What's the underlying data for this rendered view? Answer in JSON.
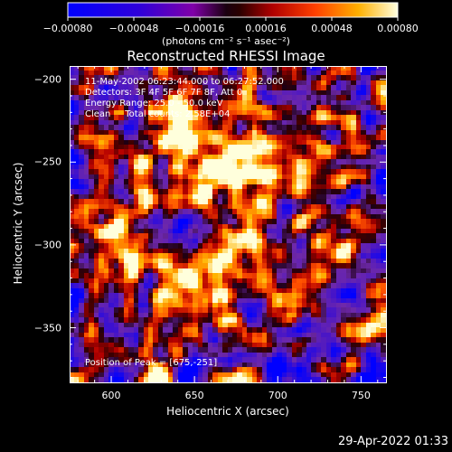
{
  "chart_data": {
    "type": "heatmap",
    "title": "Reconstructed RHESSI Image",
    "xlabel": "Heliocentric X (arcsec)",
    "ylabel": "Heliocentric Y (arcsec)",
    "xlim": [
      575,
      765
    ],
    "ylim": [
      -383,
      -192
    ],
    "xticks": [
      "600",
      "650",
      "700",
      "750"
    ],
    "yticks": [
      "-200",
      "-250",
      "-300",
      "-350"
    ],
    "colorbar": {
      "range": [
        -0.0008,
        0.0008
      ],
      "ticks": [
        "-0.00080",
        "-0.00048",
        "-0.00016",
        "0.00016",
        "0.00048",
        "0.00080"
      ],
      "unit_label": "(photons cm⁻² s⁻¹ asec⁻²)"
    },
    "info_lines": [
      "11-May-2002 06:23:44.000 to 06:27:52.000",
      "Detectors: 3F 4F 5F 6F 7F 8F, Att 0",
      "Energy Range: 25.0 - 50.0 keV",
      "Clean     Total counts: 2.58E+04"
    ],
    "peak_label": "Position of Peak = [675,-251]",
    "peak": [
      675,
      -251
    ],
    "timestamp": "29-Apr-2022 01:33"
  }
}
